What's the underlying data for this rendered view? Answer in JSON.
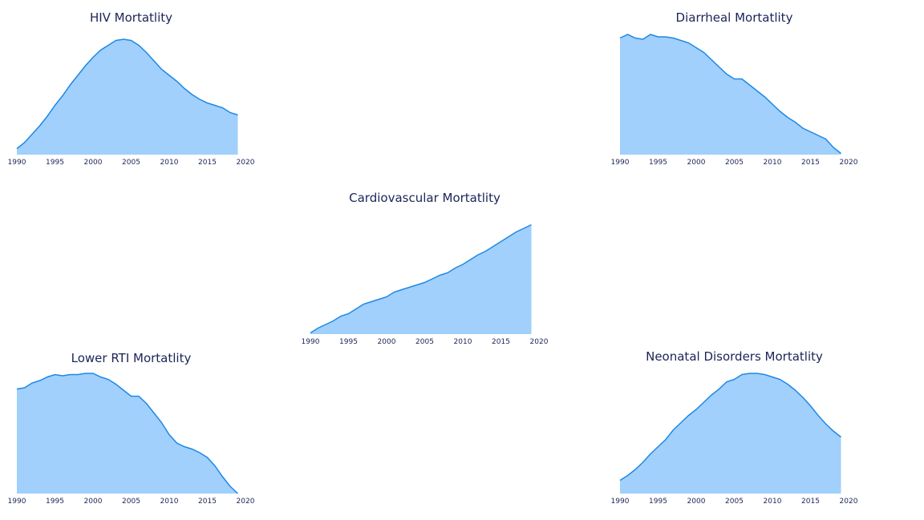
{
  "chart_data": [
    {
      "type": "area",
      "title": "HIV Mortatlity",
      "color": "#a0d0fb",
      "line_color": "#1e88e5",
      "x": [
        1990,
        1991,
        1992,
        1993,
        1994,
        1995,
        1996,
        1997,
        1998,
        1999,
        2000,
        2001,
        2002,
        2003,
        2004,
        2005,
        2006,
        2007,
        2008,
        2009,
        2010,
        2011,
        2012,
        2013,
        2014,
        2015,
        2016,
        2017,
        2018,
        2019
      ],
      "values": [
        5,
        10,
        17,
        24,
        32,
        41,
        49,
        58,
        66,
        74,
        81,
        87,
        91,
        95,
        96,
        95,
        91,
        85,
        78,
        71,
        66,
        61,
        55,
        50,
        46,
        43,
        41,
        39,
        35,
        33
      ],
      "xlim": [
        1990,
        2020
      ],
      "xticks": [
        1990,
        1995,
        2000,
        2005,
        2010,
        2015,
        2020
      ],
      "ylim": [
        0,
        100
      ]
    },
    {
      "type": "area",
      "title": "Diarrheal Mortatlity",
      "color": "#a0d0fb",
      "line_color": "#1e88e5",
      "x": [
        1990,
        1991,
        1992,
        1993,
        1994,
        1995,
        1996,
        1997,
        1998,
        1999,
        2000,
        2001,
        2002,
        2003,
        2004,
        2005,
        2006,
        2007,
        2008,
        2009,
        2010,
        2011,
        2012,
        2013,
        2014,
        2015,
        2016,
        2017,
        2018,
        2019
      ],
      "values": [
        97,
        100,
        97,
        96,
        100,
        98,
        98,
        97,
        95,
        93,
        89,
        85,
        79,
        73,
        67,
        63,
        63,
        58,
        53,
        48,
        42,
        36,
        31,
        27,
        22,
        19,
        16,
        13,
        6,
        1
      ],
      "xlim": [
        1990,
        2020
      ],
      "xticks": [
        1990,
        1995,
        2000,
        2005,
        2010,
        2015,
        2020
      ],
      "ylim": [
        0,
        100
      ]
    },
    {
      "type": "area",
      "title": "Cardiovascular Mortatlity",
      "color": "#a0d0fb",
      "line_color": "#1e88e5",
      "x": [
        1990,
        1991,
        1992,
        1993,
        1994,
        1995,
        1996,
        1997,
        1998,
        1999,
        2000,
        2001,
        2002,
        2003,
        2004,
        2005,
        2006,
        2007,
        2008,
        2009,
        2010,
        2011,
        2012,
        2013,
        2014,
        2015,
        2016,
        2017,
        2018,
        2019
      ],
      "values": [
        1,
        5,
        8,
        11,
        15,
        17,
        21,
        25,
        27,
        29,
        31,
        35,
        37,
        39,
        41,
        43,
        46,
        49,
        51,
        55,
        58,
        62,
        66,
        69,
        73,
        77,
        81,
        85,
        88,
        91
      ],
      "xlim": [
        1990,
        2020
      ],
      "xticks": [
        1990,
        1995,
        2000,
        2005,
        2010,
        2015,
        2020
      ],
      "ylim": [
        0,
        100
      ]
    },
    {
      "type": "area",
      "title": "Lower RTI Mortatlity",
      "color": "#a0d0fb",
      "line_color": "#1e88e5",
      "x": [
        1990,
        1991,
        1992,
        1993,
        1994,
        1995,
        1996,
        1997,
        1998,
        1999,
        2000,
        2001,
        2002,
        2003,
        2004,
        2005,
        2006,
        2007,
        2008,
        2009,
        2010,
        2011,
        2012,
        2013,
        2014,
        2015,
        2016,
        2017,
        2018,
        2019
      ],
      "values": [
        87,
        88,
        92,
        94,
        97,
        99,
        98,
        99,
        99,
        100,
        100,
        97,
        95,
        91,
        86,
        81,
        81,
        75,
        67,
        59,
        49,
        42,
        39,
        37,
        34,
        30,
        23,
        14,
        6,
        0
      ],
      "xlim": [
        1990,
        2020
      ],
      "xticks": [
        1990,
        1995,
        2000,
        2005,
        2010,
        2015,
        2020
      ],
      "ylim": [
        0,
        100
      ]
    },
    {
      "type": "area",
      "title": "Neonatal Disorders Mortatlity",
      "color": "#a0d0fb",
      "line_color": "#1e88e5",
      "x": [
        1990,
        1991,
        1992,
        1993,
        1994,
        1995,
        1996,
        1997,
        1998,
        1999,
        2000,
        2001,
        2002,
        2003,
        2004,
        2005,
        2006,
        2007,
        2008,
        2009,
        2010,
        2011,
        2012,
        2013,
        2014,
        2015,
        2016,
        2017,
        2018,
        2019
      ],
      "values": [
        11,
        15,
        20,
        26,
        33,
        39,
        45,
        53,
        59,
        65,
        70,
        76,
        82,
        87,
        93,
        95,
        99,
        100,
        100,
        99,
        97,
        95,
        91,
        86,
        80,
        73,
        65,
        58,
        52,
        47
      ],
      "xlim": [
        1990,
        2020
      ],
      "xticks": [
        1990,
        1995,
        2000,
        2005,
        2010,
        2015,
        2020
      ],
      "ylim": [
        0,
        100
      ]
    }
  ]
}
